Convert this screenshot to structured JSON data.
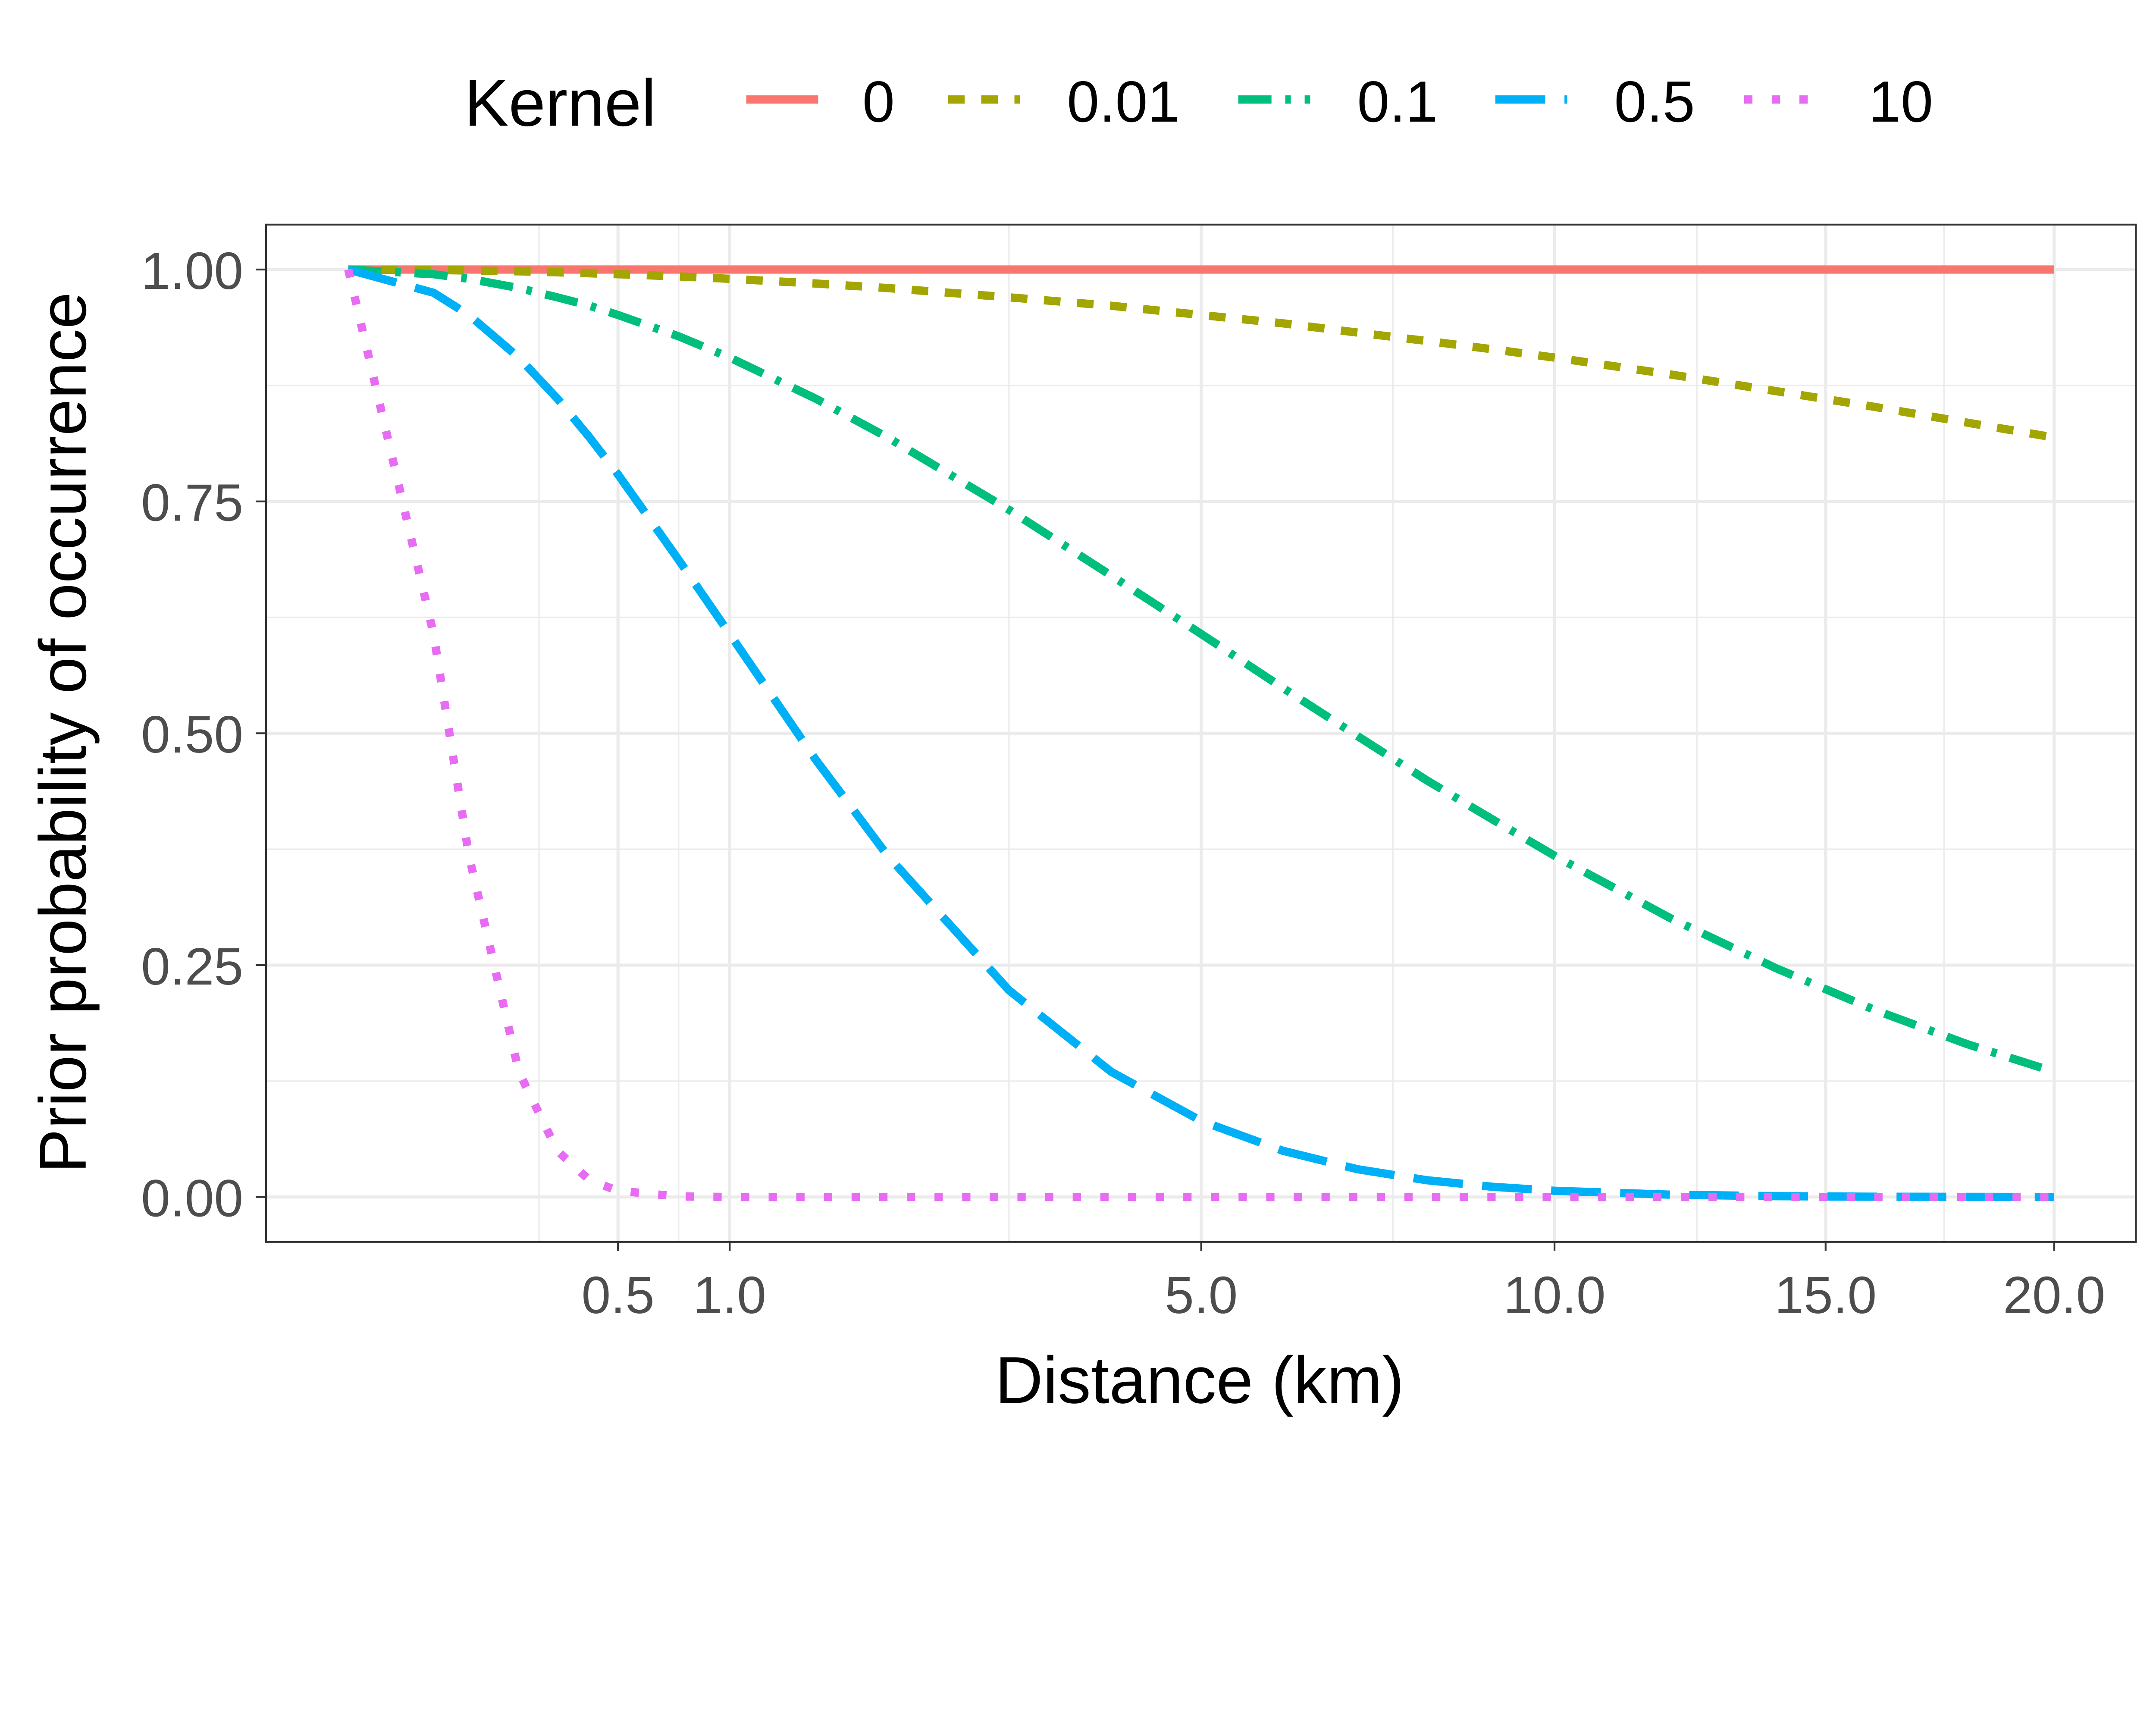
{
  "chart_data": {
    "type": "line",
    "title": "",
    "xlabel": "Distance (km)",
    "ylabel": "Prior probability of occurrence",
    "x_scale": "sqrt",
    "xlim": [
      0,
      20
    ],
    "ylim": [
      0,
      1
    ],
    "x_ticks": [
      "0.5",
      "1.0",
      "5.0",
      "10.0",
      "15.0",
      "20.0"
    ],
    "x_tick_values": [
      0.5,
      1,
      5,
      10,
      15,
      20
    ],
    "y_ticks": [
      "0.00",
      "0.25",
      "0.50",
      "0.75",
      "1.00"
    ],
    "y_tick_values": [
      0,
      0.25,
      0.5,
      0.75,
      1
    ],
    "grid": true,
    "legend": {
      "title": "Kernel",
      "position": "top"
    },
    "x": [
      0,
      0.05,
      0.1,
      0.2,
      0.3,
      0.4,
      0.5,
      0.75,
      1,
      1.5,
      2,
      3,
      4,
      5,
      6,
      7,
      8,
      9,
      10,
      12,
      14,
      16,
      18,
      20
    ],
    "series": [
      {
        "name": "0",
        "color": "#F8766D",
        "dash": "solid",
        "values": [
          1,
          1,
          1,
          1,
          1,
          1,
          1,
          1,
          1,
          1,
          1,
          1,
          1,
          1,
          1,
          1,
          1,
          1,
          1,
          1,
          1,
          1,
          1,
          1
        ]
      },
      {
        "name": "0.01",
        "color": "#A3A500",
        "dash": "dashed",
        "values": [
          1,
          0.9995,
          0.999,
          0.998,
          0.997,
          0.996,
          0.995,
          0.9925,
          0.99,
          0.985,
          0.98,
          0.97,
          0.961,
          0.951,
          0.942,
          0.932,
          0.923,
          0.914,
          0.905,
          0.887,
          0.869,
          0.852,
          0.835,
          0.819
        ]
      },
      {
        "name": "0.1",
        "color": "#00BF7D",
        "dash": "dotdash",
        "values": [
          1,
          0.995,
          0.99,
          0.98,
          0.97,
          0.961,
          0.951,
          0.928,
          0.905,
          0.861,
          0.819,
          0.741,
          0.67,
          0.607,
          0.549,
          0.497,
          0.449,
          0.407,
          0.368,
          0.301,
          0.247,
          0.202,
          0.165,
          0.135
        ]
      },
      {
        "name": "0.5",
        "color": "#00B0F6",
        "dash": "longdash",
        "values": [
          1,
          0.975,
          0.951,
          0.905,
          0.861,
          0.819,
          0.779,
          0.687,
          0.607,
          0.472,
          0.368,
          0.223,
          0.135,
          0.082,
          0.05,
          0.03,
          0.018,
          0.011,
          0.0067,
          0.0025,
          0.0009,
          0.0003,
          0.0001,
          0
        ]
      },
      {
        "name": "10",
        "color": "#E76BF3",
        "dash": "dotted",
        "values": [
          1,
          0.607,
          0.368,
          0.135,
          0.05,
          0.018,
          0.0067,
          0.0006,
          0,
          0,
          0,
          0,
          0,
          0,
          0,
          0,
          0,
          0,
          0,
          0,
          0,
          0,
          0,
          0
        ]
      }
    ]
  }
}
